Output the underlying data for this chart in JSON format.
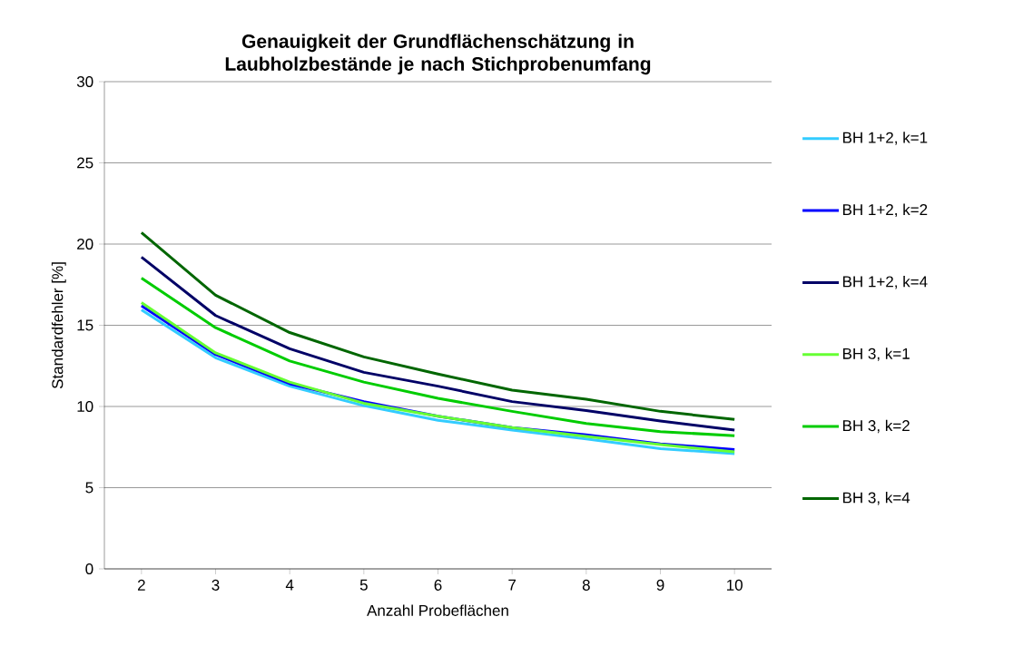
{
  "chart_data": {
    "type": "line",
    "title": "Genauigkeit der Grundflächenschätzung in Laubholzbestände je nach Stichprobenumfang",
    "xlabel": "Anzahl Probeflächen",
    "ylabel": "Standardfehler [%]",
    "categories": [
      "2",
      "3",
      "4",
      "5",
      "6",
      "7",
      "8",
      "9",
      "10"
    ],
    "series": [
      {
        "name": "BH 1+2, k=1",
        "color": "#33ccff",
        "values": [
          15.95,
          13.0,
          11.25,
          10.05,
          9.15,
          8.55,
          8.0,
          7.4,
          7.1
        ]
      },
      {
        "name": "BH 1+2, k=2",
        "color": "#0000ff",
        "values": [
          16.2,
          13.2,
          11.4,
          10.3,
          9.4,
          8.7,
          8.25,
          7.7,
          7.35
        ]
      },
      {
        "name": "BH 1+2, k=4",
        "color": "#000066",
        "values": [
          19.2,
          15.6,
          13.55,
          12.1,
          11.25,
          10.3,
          9.75,
          9.1,
          8.55
        ]
      },
      {
        "name": "BH 3, k=1",
        "color": "#66ff33",
        "values": [
          16.4,
          13.3,
          11.5,
          10.2,
          9.4,
          8.7,
          8.15,
          7.65,
          7.2
        ]
      },
      {
        "name": "BH 3, k=2",
        "color": "#00cc00",
        "values": [
          17.9,
          14.85,
          12.8,
          11.5,
          10.5,
          9.7,
          8.95,
          8.45,
          8.2
        ]
      },
      {
        "name": "BH 3, k=4",
        "color": "#006600",
        "values": [
          20.7,
          16.85,
          14.55,
          13.05,
          12.0,
          11.0,
          10.45,
          9.7,
          9.2
        ]
      }
    ],
    "ylim": [
      0,
      30
    ],
    "yticks": [
      0,
      5,
      10,
      15,
      20,
      25,
      30
    ],
    "grid": "y",
    "legend": "right",
    "marker": "none",
    "line_style": "solid"
  }
}
